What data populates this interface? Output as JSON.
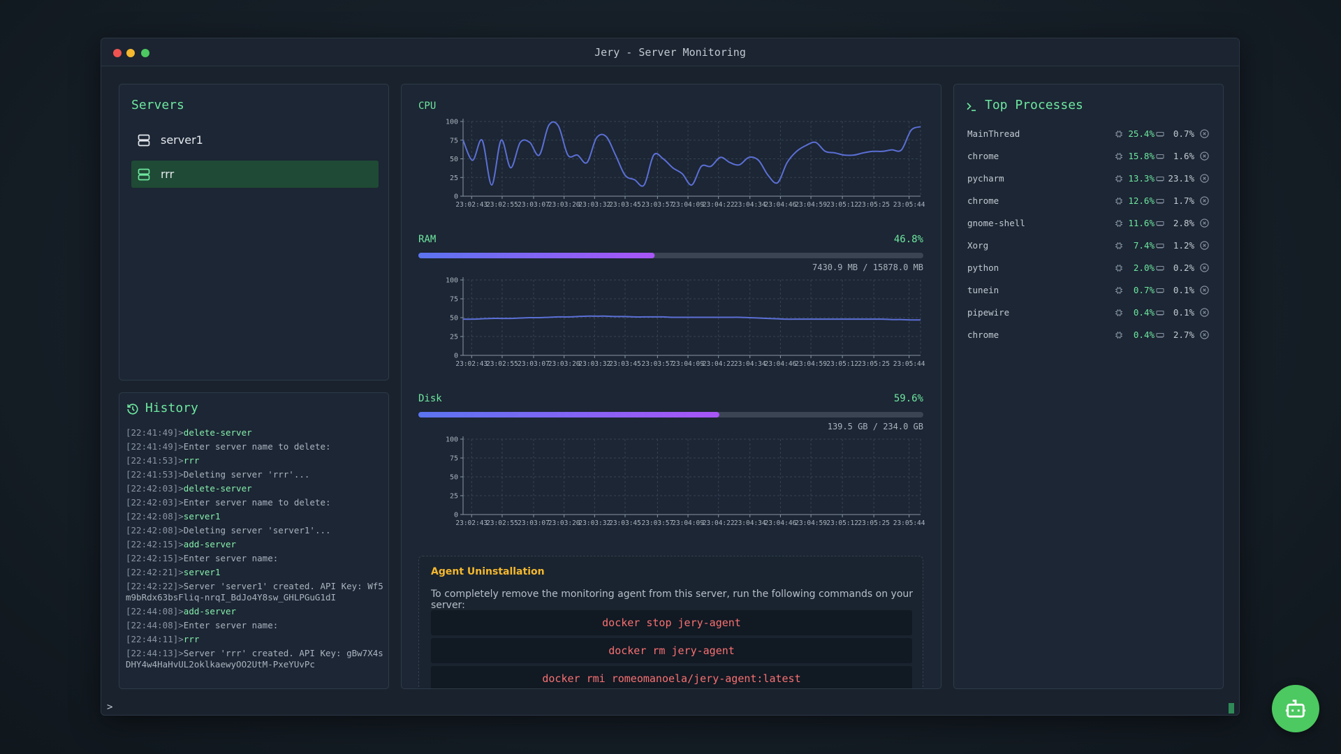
{
  "window": {
    "title": "Jery - Server Monitoring"
  },
  "servers": {
    "title": "Servers",
    "items": [
      "server1",
      "rrr"
    ]
  },
  "history": {
    "title": "History",
    "entries": [
      {
        "stamp": "[22:41:49]>",
        "text": "delete-server",
        "command": true
      },
      {
        "stamp": "[22:41:49]>",
        "text": "Enter server name to delete:",
        "command": false
      },
      {
        "stamp": "[22:41:53]>",
        "text": "rrr",
        "command": true
      },
      {
        "stamp": "[22:41:53]>",
        "text": "Deleting server 'rrr'...",
        "command": false
      },
      {
        "stamp": "[22:42:03]>",
        "text": "delete-server",
        "command": true
      },
      {
        "stamp": "[22:42:03]>",
        "text": "Enter server name to delete:",
        "command": false
      },
      {
        "stamp": "[22:42:08]>",
        "text": "server1",
        "command": true
      },
      {
        "stamp": "[22:42:08]>",
        "text": "Deleting server 'server1'...",
        "command": false
      },
      {
        "stamp": "[22:42:15]>",
        "text": "add-server",
        "command": true
      },
      {
        "stamp": "[22:42:15]>",
        "text": "Enter server name:",
        "command": false
      },
      {
        "stamp": "[22:42:21]>",
        "text": "server1",
        "command": true
      },
      {
        "stamp": "[22:42:22]>",
        "text": "Server 'server1' created. API Key: Wf5m9bRdx63bsFliq-nrqI_BdJo4Y8sw_GHLPGuG1dI",
        "command": false
      },
      {
        "stamp": "[22:44:08]>",
        "text": "add-server",
        "command": true
      },
      {
        "stamp": "[22:44:08]>",
        "text": "Enter server name:",
        "command": false
      },
      {
        "stamp": "[22:44:11]>",
        "text": "rrr",
        "command": true
      },
      {
        "stamp": "[22:44:13]>",
        "text": "Server 'rrr' created. API Key: gBw7X4sDHY4w4HaHvUL2oklkaewyOO2UtM-PxeYUvPc",
        "command": false
      }
    ]
  },
  "metrics": {
    "cpu": {
      "label": "CPU",
      "chart": {
        "type": "line",
        "color": "#5b6fd6",
        "xlim": [
          0,
          48
        ],
        "ylim": [
          0,
          100
        ],
        "yticks": [
          0,
          25,
          50,
          75,
          100
        ],
        "xticks": [
          {
            "value": 0.9,
            "label": "23:02:43"
          },
          {
            "value": 4.1,
            "label": "23:02:55"
          },
          {
            "value": 7.4,
            "label": "23:03:07"
          },
          {
            "value": 10.6,
            "label": "23:03:20"
          },
          {
            "value": 13.8,
            "label": "23:03:32"
          },
          {
            "value": 17,
            "label": "23:03:45"
          },
          {
            "value": 20.4,
            "label": "23:03:57"
          },
          {
            "value": 23.6,
            "label": "23:04:09"
          },
          {
            "value": 26.8,
            "label": "23:04:22"
          },
          {
            "value": 30.1,
            "label": "23:04:34"
          },
          {
            "value": 33.3,
            "label": "23:04:46"
          },
          {
            "value": 36.5,
            "label": "23:04:59"
          },
          {
            "value": 39.8,
            "label": "23:05:12"
          },
          {
            "value": 43.1,
            "label": "23:05:25"
          },
          {
            "value": 46.8,
            "label": "23:05:44"
          }
        ],
        "values": [
          75,
          48,
          75,
          15,
          75,
          38,
          72,
          72,
          55,
          95,
          94,
          55,
          55,
          45,
          78,
          80,
          55,
          28,
          22,
          15,
          55,
          50,
          38,
          30,
          15,
          40,
          40,
          52,
          45,
          42,
          52,
          48,
          28,
          18,
          45,
          60,
          68,
          72,
          60,
          58,
          55,
          55,
          58,
          60,
          60,
          62,
          62,
          88,
          93
        ]
      }
    },
    "ram": {
      "label": "RAM",
      "percent": 46.8,
      "percent_label": "46.8%",
      "usage": "7430.9 MB / 15878.0 MB",
      "chart": {
        "type": "line",
        "color": "#5b6fd6",
        "xlim": [
          0,
          48
        ],
        "ylim": [
          0,
          100
        ],
        "yticks": [
          0,
          25,
          50,
          75,
          100
        ],
        "xticks": [
          {
            "value": 0.9,
            "label": "23:02:43"
          },
          {
            "value": 4.1,
            "label": "23:02:55"
          },
          {
            "value": 7.4,
            "label": "23:03:07"
          },
          {
            "value": 10.6,
            "label": "23:03:20"
          },
          {
            "value": 13.8,
            "label": "23:03:32"
          },
          {
            "value": 17,
            "label": "23:03:45"
          },
          {
            "value": 20.4,
            "label": "23:03:57"
          },
          {
            "value": 23.6,
            "label": "23:04:09"
          },
          {
            "value": 26.8,
            "label": "23:04:22"
          },
          {
            "value": 30.1,
            "label": "23:04:34"
          },
          {
            "value": 33.3,
            "label": "23:04:46"
          },
          {
            "value": 36.5,
            "label": "23:04:59"
          },
          {
            "value": 39.8,
            "label": "23:05:12"
          },
          {
            "value": 43.1,
            "label": "23:05:25"
          },
          {
            "value": 46.8,
            "label": "23:05:44"
          }
        ],
        "values": [
          48,
          48,
          48.5,
          49,
          49,
          49,
          49.5,
          50,
          50,
          50.5,
          51,
          51,
          51.5,
          52,
          52,
          52,
          51.5,
          51.5,
          51,
          51,
          51,
          51,
          50.5,
          50.5,
          50.5,
          50.5,
          50.5,
          50.5,
          50.5,
          50.5,
          50,
          49.5,
          49,
          48.5,
          48,
          48,
          48,
          48,
          48,
          48,
          48,
          48,
          48,
          48,
          48,
          47.5,
          47.5,
          47,
          47
        ]
      }
    },
    "disk": {
      "label": "Disk",
      "percent": 59.6,
      "percent_label": "59.6%",
      "usage": "139.5 GB / 234.0 GB",
      "chart": {
        "type": "line",
        "color": "#5b6fd6",
        "xlim": [
          0,
          48
        ],
        "ylim": [
          0,
          100
        ],
        "yticks": [
          0,
          25,
          50,
          75,
          100
        ],
        "xticks": [
          {
            "value": 0.9,
            "label": "23:02:43"
          },
          {
            "value": 4.1,
            "label": "23:02:55"
          },
          {
            "value": 7.4,
            "label": "23:03:07"
          },
          {
            "value": 10.6,
            "label": "23:03:20"
          },
          {
            "value": 13.8,
            "label": "23:03:32"
          },
          {
            "value": 17,
            "label": "23:03:45"
          },
          {
            "value": 20.4,
            "label": "23:03:57"
          },
          {
            "value": 23.6,
            "label": "23:04:09"
          },
          {
            "value": 26.8,
            "label": "23:04:22"
          },
          {
            "value": 30.1,
            "label": "23:04:34"
          },
          {
            "value": 33.3,
            "label": "23:04:46"
          },
          {
            "value": 36.5,
            "label": "23:04:59"
          },
          {
            "value": 39.8,
            "label": "23:05:12"
          },
          {
            "value": 43.1,
            "label": "23:05:25"
          },
          {
            "value": 46.8,
            "label": "23:05:44"
          }
        ]
      }
    }
  },
  "agent": {
    "title": "Agent Uninstallation",
    "description": "To completely remove the monitoring agent from this server, run the following commands on your server:",
    "commands": [
      "docker stop jery-agent",
      "docker rm jery-agent",
      "docker rmi romeomanoela/jery-agent:latest"
    ]
  },
  "processes": {
    "title": "Top Processes",
    "rows": [
      {
        "name": "MainThread",
        "cpu": "25.4%",
        "mem": "0.7%"
      },
      {
        "name": "chrome",
        "cpu": "15.8%",
        "mem": "1.6%"
      },
      {
        "name": "pycharm",
        "cpu": "13.3%",
        "mem": "23.1%"
      },
      {
        "name": "chrome",
        "cpu": "12.6%",
        "mem": "1.7%"
      },
      {
        "name": "gnome-shell",
        "cpu": "11.6%",
        "mem": "2.8%"
      },
      {
        "name": "Xorg",
        "cpu": "7.4%",
        "mem": "1.2%"
      },
      {
        "name": "python",
        "cpu": "2.0%",
        "mem": "0.2%"
      },
      {
        "name": "tunein",
        "cpu": "0.7%",
        "mem": "0.1%"
      },
      {
        "name": "pipewire",
        "cpu": "0.4%",
        "mem": "0.1%"
      },
      {
        "name": "chrome",
        "cpu": "0.4%",
        "mem": "2.7%"
      }
    ]
  },
  "terminal": {
    "prompt": ">"
  }
}
